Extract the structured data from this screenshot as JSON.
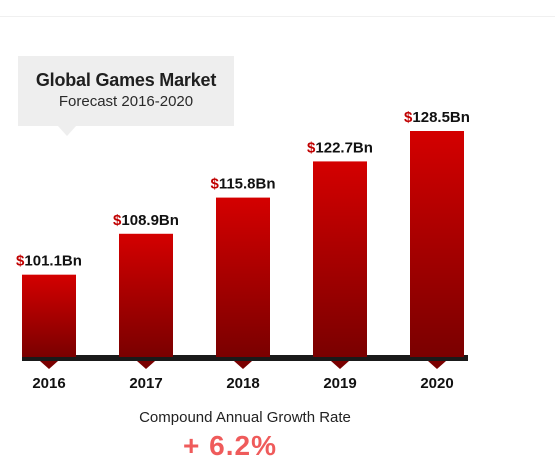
{
  "title_box": {
    "title": "Global Games Market",
    "subtitle": "Forecast 2016-2020"
  },
  "chart_data": {
    "type": "bar",
    "title": "Global Games Market",
    "subtitle": "Forecast 2016-2020",
    "categories": [
      "2016",
      "2017",
      "2018",
      "2019",
      "2020"
    ],
    "values": [
      101.1,
      108.9,
      115.8,
      122.7,
      128.5
    ],
    "value_labels": [
      "101.1Bn",
      "108.9Bn",
      "115.8Bn",
      "122.7Bn",
      "128.5Bn"
    ],
    "currency_symbol": "$",
    "xlabel": "",
    "ylabel": "",
    "ylim": [
      80,
      130
    ],
    "grid": false,
    "legend": "none",
    "colors": {
      "bar_top": "#d40000",
      "bar_bottom": "#7a0000",
      "baseline": "#1a1a1a",
      "currency": "#c00000",
      "label": "#111111"
    }
  },
  "footer": {
    "cagr_label": "Compound Annual Growth Rate",
    "cagr_value": "+ 6.2%"
  }
}
